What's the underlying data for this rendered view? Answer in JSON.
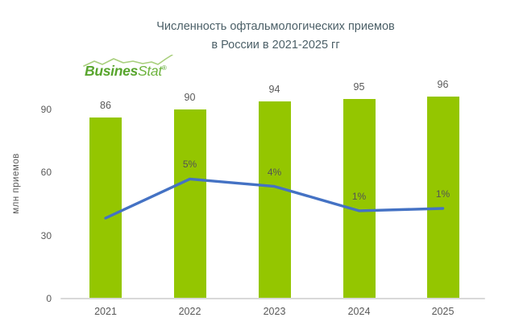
{
  "title": {
    "line1": "Численность офтальмологических приемов",
    "line2": "в России в 2021-2025 гг"
  },
  "logo": {
    "text_bold": "Busines",
    "text_italic": "Stat",
    "registered": "®"
  },
  "chart_data": {
    "type": "bar",
    "categories": [
      "2021",
      "2022",
      "2023",
      "2024",
      "2025"
    ],
    "series": [
      {
        "id": "visits-bars",
        "type": "bar",
        "values": [
          86,
          90,
          94,
          95,
          96
        ],
        "data_labels": [
          "86",
          "90",
          "94",
          "95",
          "96"
        ],
        "color": "#94c600"
      },
      {
        "id": "growth-line",
        "type": "line",
        "data_labels": [
          "",
          "5%",
          "4%",
          "1%",
          "1%"
        ],
        "values_primary_axis_equivalent": [
          38.3,
          56.9,
          53.4,
          41.8,
          42.9
        ],
        "color": "#4472c4"
      }
    ],
    "ylabel": "млн приемов",
    "yticks": [
      0,
      30,
      60,
      90
    ],
    "ylim": [
      0,
      100
    ],
    "grid": false,
    "legend_position": "none",
    "colors": {
      "bar": "#94c600",
      "line": "#4472c4",
      "text": "#595959",
      "title": "#4c6068",
      "axis": "#d9d9d9",
      "logo": "#58a52d",
      "logo_spark": "#a8cf7c"
    }
  }
}
